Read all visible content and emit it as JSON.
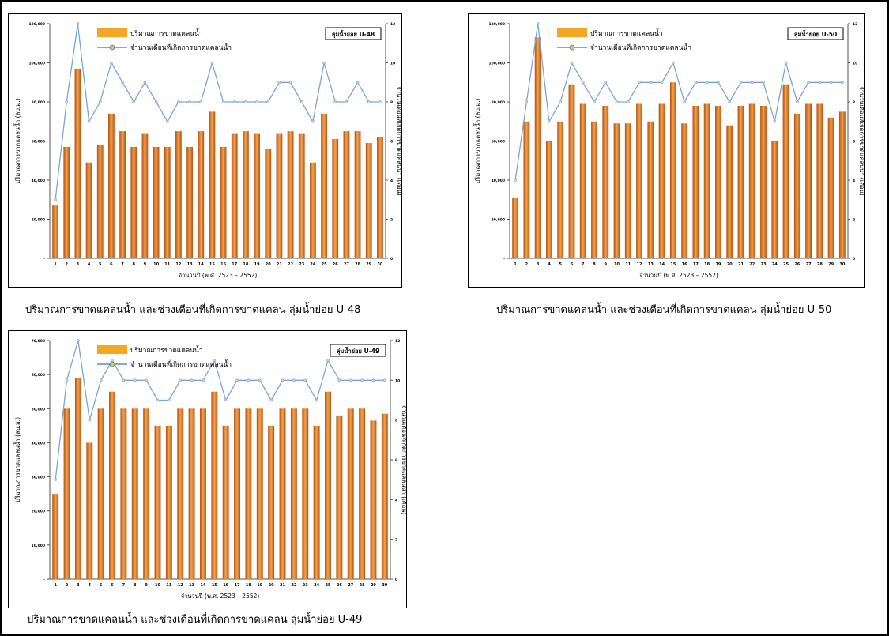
{
  "chart_data": [
    {
      "type": "bar",
      "badge": "ลุ่มน้ำย่อย U-48",
      "xlabel": "จำนวนปี (พ.ศ. 2523 – 2552)",
      "ylabel": "ปริมาณการขาดแคลนน้ำ (ลบ.ม.)",
      "y2label": "จำนวนเดือนที่เกิดการขาดแคลนน้ำ (เดือน)",
      "categories": [
        "1",
        "2",
        "3",
        "4",
        "5",
        "6",
        "7",
        "8",
        "9",
        "10",
        "11",
        "12",
        "13",
        "14",
        "15",
        "16",
        "17",
        "18",
        "19",
        "20",
        "21",
        "22",
        "23",
        "24",
        "25",
        "26",
        "27",
        "28",
        "29",
        "30"
      ],
      "ylim": [
        0,
        120000
      ],
      "yticks": [
        "-",
        "20,000",
        "40,000",
        "60,000",
        "80,000",
        "100,000",
        "120,000"
      ],
      "y2lim": [
        0,
        12
      ],
      "y2ticks": [
        "0",
        "2",
        "4",
        "6",
        "8",
        "10",
        "12"
      ],
      "grid": false,
      "legend_position": "top-left",
      "caption": "ปริมาณการขาดแคลนน้ำ และช่วงเดือนที่เกิดการขาดแคลน ลุ่มน้ำย่อย U-48",
      "series": [
        {
          "name": "ปริมาณการขาดแคลนน้ำ",
          "axis": "left",
          "color": "#e0791f",
          "values": [
            27000,
            57000,
            97000,
            49000,
            58000,
            74000,
            65000,
            57000,
            64000,
            57000,
            57000,
            65000,
            57000,
            65000,
            75000,
            57000,
            64000,
            65000,
            64000,
            56000,
            64000,
            65000,
            64000,
            49000,
            74000,
            61000,
            65000,
            65000,
            59000,
            62000
          ]
        },
        {
          "name": "จำนวนเดือนที่เกิดการขาดแคลนน้ำ",
          "axis": "right",
          "color": "#7aa6d6",
          "values": [
            3,
            8,
            12,
            7,
            8,
            10,
            9,
            8,
            9,
            8,
            7,
            8,
            8,
            8,
            10,
            8,
            8,
            8,
            8,
            8,
            9,
            9,
            8,
            7,
            10,
            8,
            8,
            9,
            8,
            8
          ]
        }
      ]
    },
    {
      "type": "bar",
      "badge": "ลุ่มน้ำย่อย U-50",
      "xlabel": "จำนวนปี (พ.ศ. 2523 – 2552)",
      "ylabel": "ปริมาณการขาดแคลนน้ำ (ลบ.ม.)",
      "y2label": "จำนวนเดือนที่เกิดการขาดแคลนน้ำ (เดือน)",
      "categories": [
        "1",
        "2",
        "3",
        "4",
        "5",
        "6",
        "7",
        "8",
        "9",
        "10",
        "11",
        "12",
        "13",
        "14",
        "15",
        "16",
        "17",
        "18",
        "19",
        "20",
        "21",
        "22",
        "23",
        "24",
        "25",
        "26",
        "27",
        "28",
        "29",
        "30"
      ],
      "ylim": [
        0,
        120000
      ],
      "yticks": [
        "-",
        "20,000",
        "40,000",
        "60,000",
        "80,000",
        "100,000",
        "120,000"
      ],
      "y2lim": [
        0,
        12
      ],
      "y2ticks": [
        "0",
        "2",
        "4",
        "6",
        "8",
        "10",
        "12"
      ],
      "grid": false,
      "legend_position": "top-left",
      "caption": "ปริมาณการขาดแคลนน้ำ และช่วงเดือนที่เกิดการขาดแคลน ลุ่มน้ำย่อย U-50",
      "series": [
        {
          "name": "ปริมาณการขาดแคลนน้ำ",
          "axis": "left",
          "color": "#e0791f",
          "values": [
            31000,
            70000,
            113000,
            60000,
            70000,
            89000,
            79000,
            70000,
            78000,
            69000,
            69000,
            79000,
            70000,
            79000,
            90000,
            69000,
            78000,
            79000,
            78000,
            68000,
            78000,
            79000,
            78000,
            60000,
            89000,
            74000,
            79000,
            79000,
            72000,
            75000
          ]
        },
        {
          "name": "จำนวนเดือนที่เกิดการขาดแคลนน้ำ",
          "axis": "right",
          "color": "#7aa6d6",
          "values": [
            4,
            8,
            12,
            7,
            8,
            10,
            9,
            8,
            9,
            8,
            8,
            9,
            9,
            9,
            10,
            8,
            9,
            9,
            9,
            8,
            9,
            9,
            9,
            7,
            10,
            8,
            9,
            9,
            9,
            9
          ]
        }
      ]
    },
    {
      "type": "bar",
      "badge": "ลุ่มน้ำย่อย U-49",
      "xlabel": "จำนวนปี (พ.ศ. 2523 – 2552)",
      "ylabel": "ปริมาณการขาดแคลนน้ำ (ลบ.ม.)",
      "y2label": "จำนวนเดือนที่เกิดการขาดแคลนน้ำ (เดือน)",
      "categories": [
        "1",
        "2",
        "3",
        "4",
        "5",
        "6",
        "7",
        "8",
        "9",
        "10",
        "11",
        "12",
        "13",
        "14",
        "15",
        "16",
        "17",
        "18",
        "19",
        "20",
        "21",
        "22",
        "23",
        "24",
        "25",
        "26",
        "27",
        "28",
        "29",
        "30"
      ],
      "ylim": [
        0,
        70000
      ],
      "yticks": [
        "-",
        "10,000",
        "20,000",
        "30,000",
        "40,000",
        "50,000",
        "60,000",
        "70,000"
      ],
      "y2lim": [
        0,
        12
      ],
      "y2ticks": [
        "0",
        "2",
        "4",
        "6",
        "8",
        "10",
        "12"
      ],
      "grid": false,
      "legend_position": "top-left",
      "caption": "ปริมาณการขาดแคลนน้ำ และช่วงเดือนที่เกิดการขาดแคลน ลุ่มน้ำย่อย U-49",
      "series": [
        {
          "name": "ปริมาณการขาดแคลนน้ำ",
          "axis": "left",
          "color": "#e0791f",
          "values": [
            25000,
            50000,
            59000,
            40000,
            50000,
            55000,
            50000,
            50000,
            50000,
            45000,
            45000,
            50000,
            50000,
            50000,
            55000,
            45000,
            50000,
            50000,
            50000,
            45000,
            50000,
            50000,
            50000,
            45000,
            55000,
            48000,
            50000,
            50000,
            46500,
            48500
          ]
        },
        {
          "name": "จำนวนเดือนที่เกิดการขาดแคลนน้ำ",
          "axis": "right",
          "color": "#7aa6d6",
          "values": [
            5,
            10,
            12,
            8,
            10,
            11,
            10,
            10,
            10,
            9,
            9,
            10,
            10,
            10,
            11,
            9,
            10,
            10,
            10,
            9,
            10,
            10,
            10,
            9,
            11,
            10,
            10,
            10,
            10,
            10
          ]
        }
      ]
    }
  ]
}
